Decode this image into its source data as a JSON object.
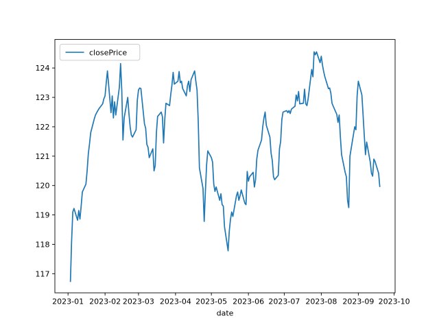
{
  "figure": {
    "background": "#ffffff",
    "plot_background": "#ffffff",
    "frame_color": "#000000"
  },
  "chart_data": {
    "type": "line",
    "title": "",
    "xlabel": "date",
    "ylabel": "",
    "grid": false,
    "legend": {
      "position": "upper left",
      "entries": [
        "closePrice"
      ],
      "border_color": "#cccccc"
    },
    "line_color": "#1f77b4",
    "ylim": [
      116.35,
      124.97
    ],
    "xlim_days_from_2023_01_01": [
      -11,
      273.8
    ],
    "y_ticks": [
      117,
      118,
      119,
      120,
      121,
      122,
      123,
      124
    ],
    "x_ticks": [
      {
        "label": "2023-01",
        "day": 0
      },
      {
        "label": "2023-02",
        "day": 31
      },
      {
        "label": "2023-03",
        "day": 59
      },
      {
        "label": "2023-04",
        "day": 90
      },
      {
        "label": "2023-05",
        "day": 120
      },
      {
        "label": "2023-06",
        "day": 151
      },
      {
        "label": "2023-07",
        "day": 181
      },
      {
        "label": "2023-08",
        "day": 212
      },
      {
        "label": "2023-09",
        "day": 243
      },
      {
        "label": "2023-10",
        "day": 273
      }
    ],
    "series": [
      {
        "name": "closePrice",
        "dates": [
          "2023-01-03",
          "2023-01-04",
          "2023-01-05",
          "2023-01-06",
          "2023-01-09",
          "2023-01-10",
          "2023-01-11",
          "2023-01-12",
          "2023-01-13",
          "2023-01-16",
          "2023-01-17",
          "2023-01-18",
          "2023-01-19",
          "2023-01-20",
          "2023-01-23",
          "2023-01-24",
          "2023-01-25",
          "2023-01-26",
          "2023-01-27",
          "2023-01-30",
          "2023-01-31",
          "2023-02-01",
          "2023-02-02",
          "2023-02-03",
          "2023-02-06",
          "2023-02-07",
          "2023-02-08",
          "2023-02-09",
          "2023-02-10",
          "2023-02-13",
          "2023-02-14",
          "2023-02-15",
          "2023-02-16",
          "2023-02-17",
          "2023-02-20",
          "2023-02-21",
          "2023-02-22",
          "2023-02-23",
          "2023-02-24",
          "2023-02-27",
          "2023-02-28",
          "2023-03-01",
          "2023-03-02",
          "2023-03-03",
          "2023-03-06",
          "2023-03-07",
          "2023-03-08",
          "2023-03-09",
          "2023-03-10",
          "2023-03-13",
          "2023-03-14",
          "2023-03-15",
          "2023-03-16",
          "2023-03-17",
          "2023-03-20",
          "2023-03-21",
          "2023-03-22",
          "2023-03-23",
          "2023-03-24",
          "2023-03-27",
          "2023-03-28",
          "2023-03-29",
          "2023-03-30",
          "2023-03-31",
          "2023-04-03",
          "2023-04-04",
          "2023-04-05",
          "2023-04-06",
          "2023-04-07",
          "2023-04-10",
          "2023-04-11",
          "2023-04-12",
          "2023-04-13",
          "2023-04-14",
          "2023-04-17",
          "2023-04-18",
          "2023-04-19",
          "2023-04-20",
          "2023-04-21",
          "2023-04-24",
          "2023-04-25",
          "2023-04-26",
          "2023-04-27",
          "2023-04-28",
          "2023-05-01",
          "2023-05-02",
          "2023-05-03",
          "2023-05-04",
          "2023-05-05",
          "2023-05-08",
          "2023-05-09",
          "2023-05-10",
          "2023-05-11",
          "2023-05-12",
          "2023-05-15",
          "2023-05-16",
          "2023-05-17",
          "2023-05-18",
          "2023-05-19",
          "2023-05-22",
          "2023-05-23",
          "2023-05-24",
          "2023-05-25",
          "2023-05-26",
          "2023-05-29",
          "2023-05-30",
          "2023-05-31",
          "2023-06-01",
          "2023-06-02",
          "2023-06-05",
          "2023-06-06",
          "2023-06-07",
          "2023-06-08",
          "2023-06-09",
          "2023-06-12",
          "2023-06-13",
          "2023-06-14",
          "2023-06-15",
          "2023-06-16",
          "2023-06-19",
          "2023-06-20",
          "2023-06-21",
          "2023-06-22",
          "2023-06-23",
          "2023-06-26",
          "2023-06-27",
          "2023-06-28",
          "2023-06-29",
          "2023-06-30",
          "2023-07-03",
          "2023-07-04",
          "2023-07-05",
          "2023-07-06",
          "2023-07-07",
          "2023-07-10",
          "2023-07-11",
          "2023-07-12",
          "2023-07-13",
          "2023-07-14",
          "2023-07-17",
          "2023-07-18",
          "2023-07-19",
          "2023-07-20",
          "2023-07-21",
          "2023-07-24",
          "2023-07-25",
          "2023-07-26",
          "2023-07-27",
          "2023-07-28",
          "2023-07-31",
          "2023-08-01",
          "2023-08-02",
          "2023-08-03",
          "2023-08-04",
          "2023-08-07",
          "2023-08-08",
          "2023-08-09",
          "2023-08-10",
          "2023-08-11",
          "2023-08-14",
          "2023-08-15",
          "2023-08-16",
          "2023-08-17",
          "2023-08-18",
          "2023-08-21",
          "2023-08-22",
          "2023-08-23",
          "2023-08-24",
          "2023-08-25",
          "2023-08-28",
          "2023-08-29",
          "2023-08-30",
          "2023-08-31",
          "2023-09-01",
          "2023-09-04",
          "2023-09-05",
          "2023-09-06",
          "2023-09-07",
          "2023-09-08",
          "2023-09-11",
          "2023-09-12",
          "2023-09-13",
          "2023-09-14",
          "2023-09-15",
          "2023-09-18",
          "2023-09-19"
        ],
        "values": [
          116.72,
          118.1,
          119.1,
          119.22,
          118.82,
          119.15,
          118.86,
          119.3,
          119.78,
          120.05,
          120.5,
          121.08,
          121.42,
          121.8,
          122.27,
          122.4,
          122.48,
          122.55,
          122.62,
          122.78,
          122.95,
          123.05,
          123.5,
          123.9,
          122.48,
          123.05,
          122.3,
          122.85,
          122.4,
          123.35,
          124.15,
          123.25,
          121.55,
          122.3,
          123.0,
          122.45,
          122.0,
          121.72,
          121.65,
          121.9,
          122.9,
          123.25,
          123.32,
          123.3,
          122.1,
          121.95,
          121.4,
          121.3,
          120.95,
          121.25,
          120.5,
          120.68,
          121.8,
          122.35,
          122.5,
          122.35,
          121.45,
          122.25,
          122.8,
          122.72,
          123.1,
          123.42,
          123.85,
          123.45,
          123.55,
          123.88,
          123.5,
          123.55,
          123.3,
          123.05,
          123.4,
          123.55,
          123.2,
          123.6,
          123.9,
          123.55,
          123.25,
          122.2,
          120.6,
          119.9,
          118.78,
          119.8,
          120.7,
          121.18,
          120.95,
          120.8,
          120.05,
          119.8,
          119.95,
          119.5,
          119.72,
          119.35,
          119.3,
          118.6,
          117.78,
          118.45,
          118.85,
          119.1,
          118.95,
          119.65,
          119.78,
          119.5,
          119.65,
          119.85,
          119.4,
          119.35,
          120.48,
          120.15,
          120.3,
          120.45,
          119.95,
          120.2,
          120.9,
          121.2,
          121.55,
          122.0,
          122.3,
          122.5,
          122.05,
          121.65,
          121.1,
          120.85,
          120.3,
          120.2,
          120.35,
          121.25,
          121.5,
          122.25,
          122.5,
          122.55,
          122.48,
          122.55,
          122.45,
          122.6,
          122.7,
          123.08,
          122.88,
          123.2,
          122.78,
          122.8,
          123.28,
          122.78,
          122.72,
          122.95,
          123.95,
          123.7,
          124.55,
          124.45,
          124.55,
          124.18,
          124.4,
          124.1,
          123.88,
          123.7,
          123.3,
          123.32,
          123.15,
          122.8,
          122.7,
          122.42,
          122.15,
          122.4,
          121.65,
          121.05,
          120.45,
          120.3,
          119.5,
          119.25,
          121.0,
          121.75,
          122.0,
          121.9,
          123.05,
          123.55,
          123.08,
          122.4,
          121.7,
          121.05,
          121.48,
          120.8,
          120.42,
          120.32,
          120.9,
          120.82,
          120.42,
          119.95
        ]
      }
    ]
  }
}
